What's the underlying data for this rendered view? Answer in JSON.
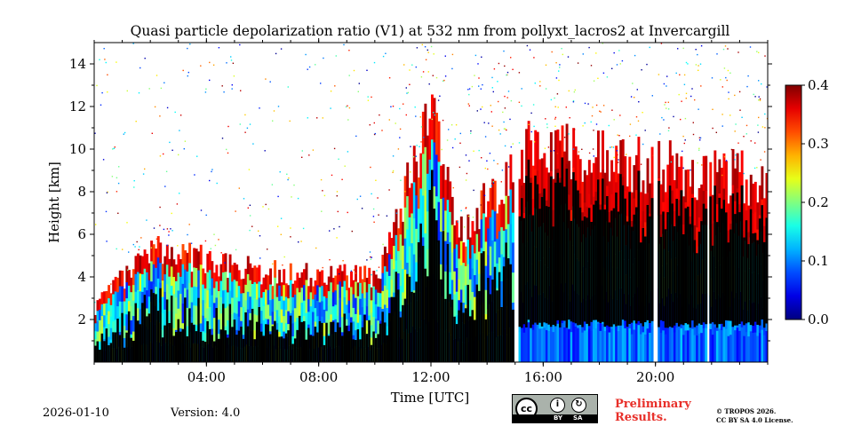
{
  "chart_data": {
    "type": "heatmap",
    "title": "Quasi particle depolarization ratio (V1) at 532 nm from pollyxt_lacros2 at Invercargill",
    "xlabel": "Time [UTC]",
    "ylabel": "Height [km]",
    "xlim_hours": [
      0,
      24
    ],
    "ylim_km": [
      0,
      15
    ],
    "x_ticks": [
      {
        "hour": 4,
        "label": "04:00"
      },
      {
        "hour": 8,
        "label": "08:00"
      },
      {
        "hour": 12,
        "label": "12:00"
      },
      {
        "hour": 16,
        "label": "16:00"
      },
      {
        "hour": 20,
        "label": "20:00"
      }
    ],
    "y_ticks": [
      {
        "value": 2,
        "label": "2"
      },
      {
        "value": 4,
        "label": "4"
      },
      {
        "value": 6,
        "label": "6"
      },
      {
        "value": 8,
        "label": "8"
      },
      {
        "value": 10,
        "label": "10"
      },
      {
        "value": 12,
        "label": "12"
      },
      {
        "value": 14,
        "label": "14"
      }
    ],
    "colorbar": {
      "min": 0.0,
      "max": 0.4,
      "colormap": "jet",
      "ticks": [
        {
          "value": 0.0,
          "label": "0.0"
        },
        {
          "value": 0.1,
          "label": "0.1"
        },
        {
          "value": 0.2,
          "label": "0.2"
        },
        {
          "value": 0.3,
          "label": "0.3"
        },
        {
          "value": 0.4,
          "label": "0.4"
        }
      ]
    },
    "data_gaps_hours": [
      [
        14.95,
        15.1
      ],
      [
        19.9,
        20.0
      ],
      [
        21.8,
        21.9
      ]
    ],
    "cloud_tops_km": [
      {
        "t": 0.0,
        "low": 0,
        "high": 2.6
      },
      {
        "t": 2.0,
        "low": 0,
        "high": 5.2
      },
      {
        "t": 4.0,
        "low": 0,
        "high": 4.8
      },
      {
        "t": 6.0,
        "low": 0,
        "high": 4.2
      },
      {
        "t": 10.0,
        "low": 0,
        "high": 4.0
      },
      {
        "t": 12.0,
        "low": 0,
        "high": 11.5
      },
      {
        "t": 13.0,
        "low": 0,
        "high": 6.0
      },
      {
        "t": 15.5,
        "low": 0,
        "high": 10.0
      },
      {
        "t": 18.0,
        "low": 0,
        "high": 9.5
      },
      {
        "t": 21.0,
        "low": 0,
        "high": 9.0
      },
      {
        "t": 24.0,
        "low": 0,
        "high": 8.5
      }
    ]
  },
  "footer": {
    "date": "2026-01-10",
    "version": "Version: 4.0",
    "preliminary": [
      "Preliminary",
      "Results."
    ],
    "copyright": [
      "© TROPOS 2026.",
      "CC BY SA 4.0 License."
    ],
    "license_badge": {
      "cc": "cc",
      "by": "BY",
      "sa": "SA"
    }
  },
  "colors": {
    "black": "#000000",
    "accent": "#e8302a"
  }
}
